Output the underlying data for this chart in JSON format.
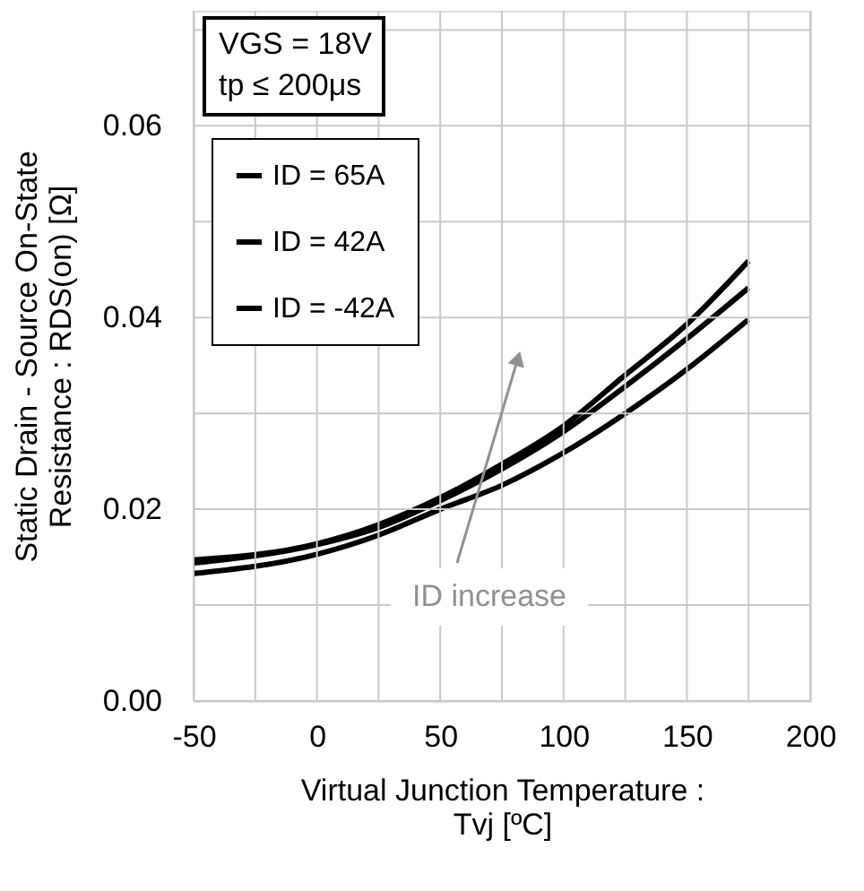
{
  "chart_data": {
    "type": "line",
    "xlabel": "Virtual Junction Temperature :\nTvj [ºC]",
    "ylabel": "Static Drain - Source On-State\nResistance : RDS(on) [Ω]",
    "x": [
      -50,
      0,
      25,
      50,
      75,
      100,
      125,
      150,
      175
    ],
    "series": [
      {
        "name": "ID = 65A",
        "color": "#000000",
        "values": [
          0.0147,
          0.0164,
          0.0184,
          0.0212,
          0.0247,
          0.0287,
          0.034,
          0.0393,
          0.0459
        ]
      },
      {
        "name": "ID = 42A",
        "color": "#000000",
        "values": [
          0.0144,
          0.0163,
          0.0181,
          0.0209,
          0.0242,
          0.0281,
          0.0328,
          0.0378,
          0.0431
        ]
      },
      {
        "name": "ID = -42A",
        "color": "#000000",
        "values": [
          0.0133,
          0.0153,
          0.0173,
          0.02,
          0.0225,
          0.0259,
          0.03,
          0.0346,
          0.0398
        ]
      }
    ],
    "xlim": [
      -50,
      200
    ],
    "xticks": [
      -50,
      {
        "value": -25,
        "label": null
      },
      0,
      {
        "value": 25,
        "label": null
      },
      50,
      {
        "value": 75,
        "label": null
      },
      100,
      {
        "value": 125,
        "label": null
      },
      150,
      {
        "value": 175,
        "label": null
      },
      200
    ],
    "ylim": [
      0,
      0.072
    ],
    "yticks": [
      {
        "value": 0,
        "label": "0.00"
      },
      {
        "value": 0.01,
        "label": null
      },
      {
        "value": 0.02,
        "label": "0.02"
      },
      {
        "value": 0.03,
        "label": null
      },
      {
        "value": 0.04,
        "label": "0.04"
      },
      {
        "value": 0.05,
        "label": null
      },
      {
        "value": 0.06,
        "label": "0.06"
      },
      {
        "value": 0.07,
        "label": null
      }
    ],
    "annotations": [
      "VGS = 18V",
      "tp ≤ 200μs",
      "ID increase"
    ],
    "grid": true,
    "legend": "top left",
    "marker": "none",
    "line_style": "solid"
  }
}
